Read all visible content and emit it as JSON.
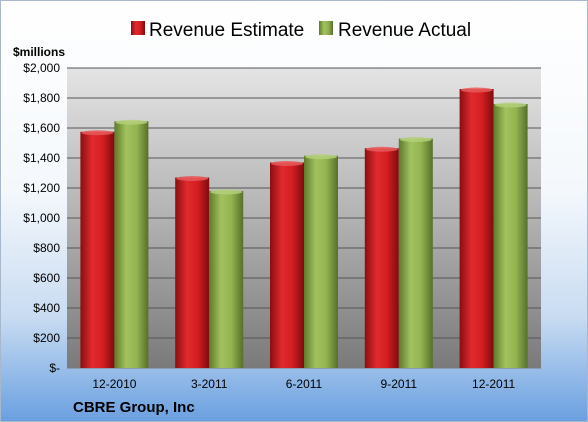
{
  "chart_data": {
    "type": "bar",
    "y_unit_label": "$millions",
    "categories": [
      "12-2010",
      "3-2011",
      "6-2011",
      "9-2011",
      "12-2011"
    ],
    "series": [
      {
        "name": "Revenue Estimate",
        "color": "#c0181c",
        "values": [
          1575,
          1270,
          1370,
          1465,
          1860
        ]
      },
      {
        "name": "Revenue Actual",
        "color": "#8aaa48",
        "values": [
          1645,
          1180,
          1415,
          1530,
          1760
        ]
      }
    ],
    "y_ticks": [
      "$-",
      "$200",
      "$400",
      "$600",
      "$800",
      "$1,000",
      "$1,200",
      "$1,400",
      "$1,600",
      "$1,800",
      "$2,000"
    ],
    "ylim": [
      0,
      2000
    ],
    "grid": true,
    "legend_position": "top",
    "footer": "CBRE Group, Inc"
  }
}
